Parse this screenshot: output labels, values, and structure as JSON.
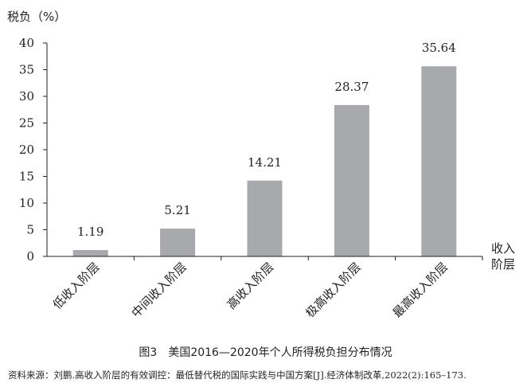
{
  "chart_data": {
    "type": "bar",
    "categories": [
      "低收入阶层",
      "中间收入阶层",
      "高收入阶层",
      "极高收入阶层",
      "最高收入阶层"
    ],
    "values": [
      1.19,
      5.21,
      14.21,
      28.37,
      35.64
    ],
    "value_labels": [
      "1.19",
      "5.21",
      "14.21",
      "28.37",
      "35.64"
    ],
    "ylabel": "税负（%）",
    "xlabel": "收入\n阶层",
    "ylim": [
      0,
      40
    ],
    "yticks": [
      0,
      5,
      10,
      15,
      20,
      25,
      30,
      35,
      40
    ],
    "grid": false,
    "bar_color": "#a7a9ac"
  },
  "caption": "图3　美国2016—2020年个人所得税负担分布情况",
  "source": "资料来源：刘鹏.高收入阶层的有效调控：最低替代税的国际实践与中国方案[J].经济体制改革,2022(2):165–173."
}
